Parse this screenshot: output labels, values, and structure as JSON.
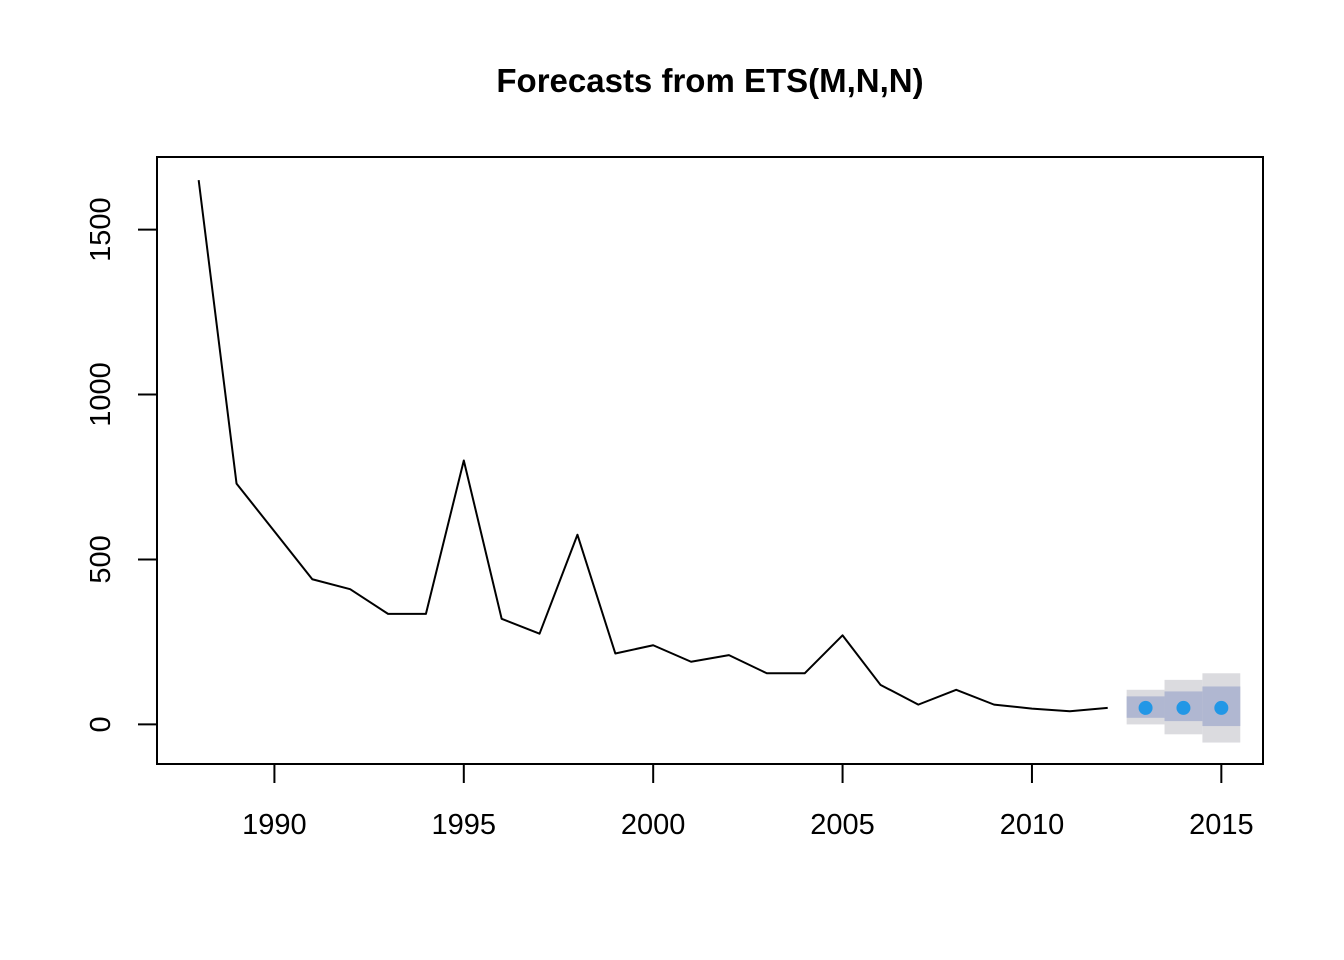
{
  "chart_data": {
    "type": "line",
    "title": "Forecasts from ETS(M,N,N)",
    "xlabel": "",
    "ylabel": "",
    "xlim": [
      1986.9,
      2016.1
    ],
    "ylim": [
      -120,
      1720
    ],
    "x_ticks": [
      1990,
      1995,
      2000,
      2005,
      2010,
      2015
    ],
    "x_tick_labels": [
      "1990",
      "1995",
      "2000",
      "2005",
      "2010",
      "2015"
    ],
    "y_ticks": [
      0,
      500,
      1000,
      1500
    ],
    "y_tick_labels": [
      "0",
      "500",
      "1000",
      "1500"
    ],
    "grid": false,
    "legend": "none",
    "series": [
      {
        "x": [
          1988,
          1989,
          1990,
          1991,
          1992,
          1993,
          1994,
          1995,
          1996,
          1997,
          1998,
          1999,
          2000,
          2001,
          2002,
          2003,
          2004,
          2005,
          2006,
          2007,
          2008,
          2009,
          2010,
          2011,
          2012
        ],
        "values": [
          1650,
          730,
          585,
          440,
          410,
          335,
          335,
          800,
          320,
          275,
          575,
          215,
          240,
          190,
          210,
          155,
          155,
          270,
          120,
          60,
          105,
          60,
          48,
          40,
          50
        ],
        "color": "#000000"
      }
    ],
    "forecast": {
      "x": [
        2013,
        2014,
        2015
      ],
      "mean": [
        50,
        50,
        50
      ],
      "lower_80": [
        20,
        10,
        -5
      ],
      "upper_80": [
        85,
        100,
        115
      ],
      "lower_95": [
        0,
        -30,
        -55
      ],
      "upper_95": [
        105,
        135,
        155
      ],
      "point_color": "#2297E6",
      "band_80_color": "#B0B7D1",
      "band_95_color": "#DBDBDF"
    }
  }
}
